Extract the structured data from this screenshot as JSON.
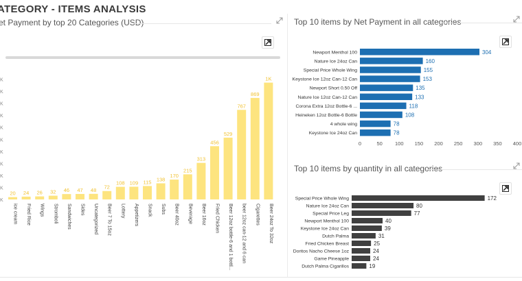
{
  "page": {
    "title": "ATEGORY - ITEMS ANALYSIS"
  },
  "panels": {
    "left": {
      "title": "et Payment by top 20 Categories (USD)"
    },
    "top_right": {
      "title": "Top 10 items by Net Payment in all categories"
    },
    "bottom_right": {
      "title": "Top 10 items by quantity in all categories"
    }
  },
  "colors": {
    "left_bars": "#fde47f",
    "left_labels": "#f1c232",
    "top_bars": "#1d6fb2",
    "top_labels": "#1d6fb2",
    "bottom_bars": "#404040",
    "bottom_labels": "#333333"
  },
  "icons": {
    "expand": "expand-icon",
    "focus": "focus-mode-icon"
  },
  "chart_data": [
    {
      "type": "bar",
      "orientation": "vertical",
      "title": "et Payment by top 20 Categories (USD)",
      "categories": [
        "ice cream",
        "Fried Rice",
        "Wings",
        "Stromboli",
        "Sandwiches",
        "Sides",
        "Uncategorized",
        "Beer 7 To 15oz",
        "Lottery",
        "Appetizers",
        "Snack",
        "Subs",
        "Beer 40oz",
        "Beverage",
        "Beer 16oz",
        "Fried Chicken",
        "Beer 12oz bottle-6 and 1 bottl...",
        "beer 12oz can-12 and 6 can",
        "Cigarettes",
        "Beer 24oz To 32oz"
      ],
      "values": [
        20,
        24,
        26,
        32,
        46,
        47,
        48,
        72,
        108,
        109,
        115,
        138,
        170,
        215,
        313,
        456,
        529,
        767,
        869,
        1000
      ],
      "labels": [
        "20",
        "24",
        "26",
        "32",
        "46",
        "47",
        "48",
        "72",
        "108",
        "109",
        "115",
        "138",
        "170",
        "215",
        "313",
        "456",
        "529",
        "767",
        "869",
        "1K"
      ],
      "ylim": [
        0,
        1150
      ],
      "grid": false
    },
    {
      "type": "bar",
      "orientation": "horizontal",
      "title": "Top 10 items by Net Payment in all categories",
      "categories": [
        "Newport Menthol 100",
        "Nature Ice 24oz Can",
        "Special Price Whole Wing",
        "Keystone Ice 12oz Can-12 Can",
        "Newport Short 0.50 Off",
        "Nature Ice 12oz Can-12 Can",
        "Corona Extra 12oz Bottle-6 ...",
        "Heineken 12oz Bottle-6 Bottle",
        "4 whole wing",
        "Keystone Ice 24oz Can"
      ],
      "values": [
        304,
        160,
        155,
        153,
        135,
        133,
        118,
        108,
        78,
        78
      ],
      "xticks": [
        "0",
        "50",
        "100",
        "150",
        "200",
        "250",
        "300",
        "350",
        "400"
      ],
      "xlim": [
        0,
        400
      ],
      "grid": false
    },
    {
      "type": "bar",
      "orientation": "horizontal",
      "title": "Top 10 items by quantity in all categories",
      "categories": [
        "Special Price Whole Wing",
        "Nature Ice 24oz Can",
        "Special Price Leg",
        "Newport Menthol 100",
        "Keystone Ice 24oz Can",
        "Dutch Palma",
        "Fried Chicken Breast",
        "Doritos Nacho Cheese 1oz",
        "Game Pineapple",
        "Dutch Palma Cigarillos"
      ],
      "values": [
        172,
        80,
        77,
        40,
        39,
        31,
        25,
        24,
        24,
        19
      ],
      "xlim": [
        0,
        175
      ],
      "grid": false
    }
  ]
}
